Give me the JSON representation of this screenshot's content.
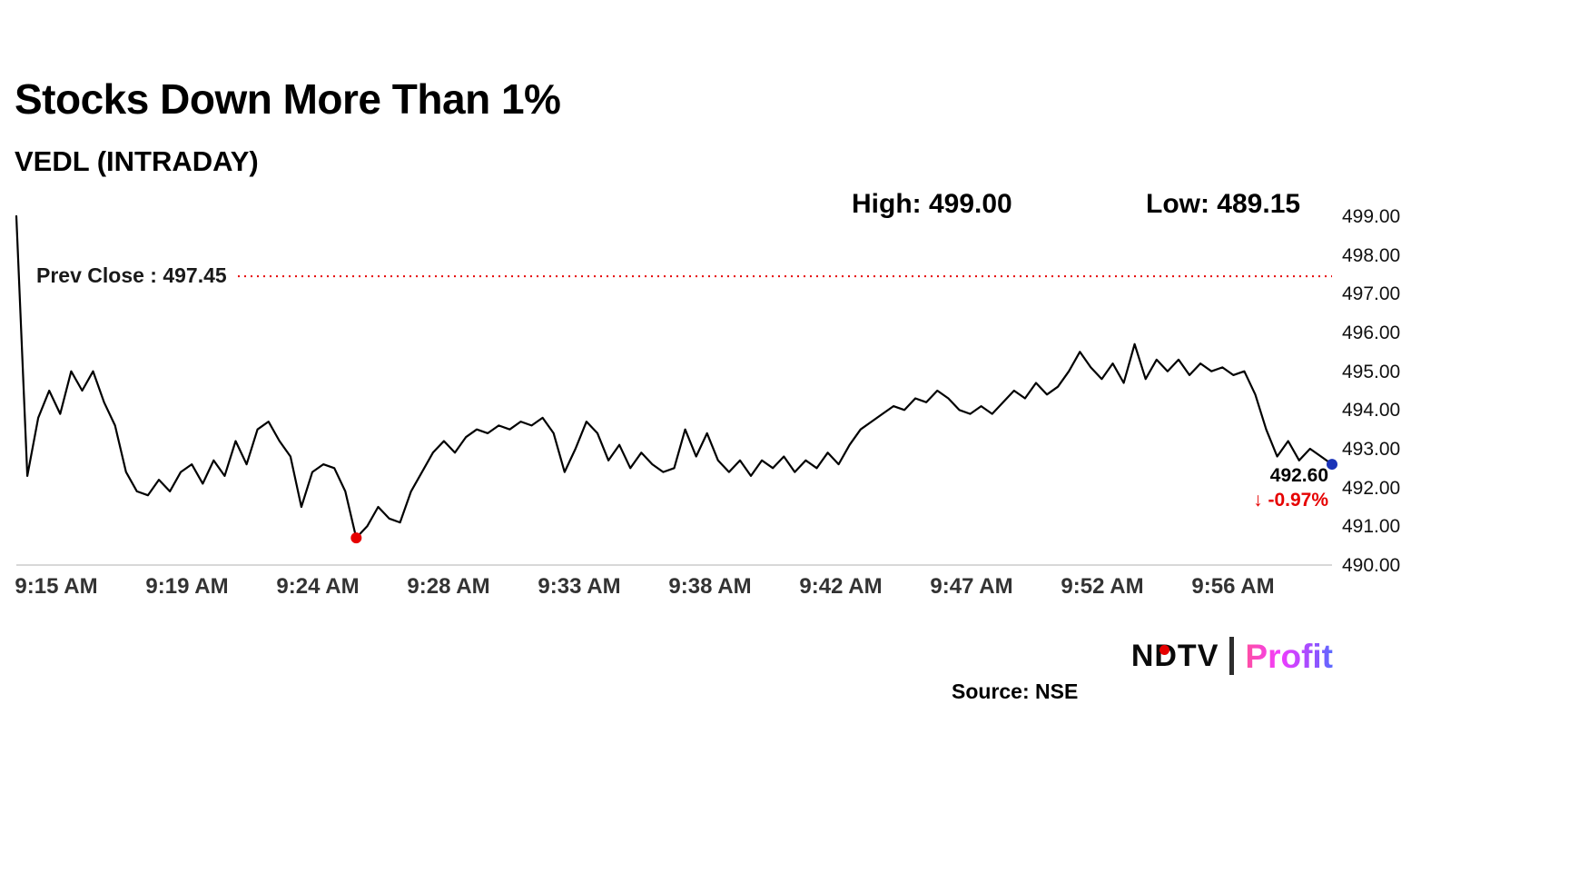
{
  "header": {
    "title": "Stocks Down More Than 1%",
    "subtitle": "VEDL (INTRADAY)"
  },
  "stats": {
    "high_label": "High: 499.00",
    "low_label": "Low: 489.15"
  },
  "prev_close": {
    "label": "Prev Close : 497.45",
    "value": 497.45
  },
  "annotation": {
    "last_price": "492.60",
    "change": "↓ -0.97%"
  },
  "footer": {
    "source": "Source: NSE",
    "logo_ndtv": "NDTV",
    "logo_profit": "Profit"
  },
  "colors": {
    "line": "#000000",
    "prev_close_line": "#e60000",
    "change_text": "#e60000",
    "min_dot": "#e60000",
    "last_dot": "#1a33b8",
    "axis": "#cccccc",
    "ndtv_dot": "#e60000"
  },
  "chart_data": {
    "type": "line",
    "title": "VEDL intraday price",
    "xlabel": "",
    "ylabel": "",
    "x_labels": [
      "9:15 AM",
      "9:19 AM",
      "9:24 AM",
      "9:28 AM",
      "9:33 AM",
      "9:38 AM",
      "9:42 AM",
      "9:47 AM",
      "9:52 AM",
      "9:56 AM"
    ],
    "y_tick_labels": [
      "499.00",
      "498.00",
      "497.00",
      "496.00",
      "495.00",
      "494.00",
      "493.00",
      "492.00",
      "491.00",
      "490.00"
    ],
    "ylim": [
      490,
      499
    ],
    "grid": false,
    "legend": "none",
    "high": 499.0,
    "low": 489.15,
    "prev_close": 497.45,
    "last": 492.6,
    "change_pct": -0.97,
    "values": [
      499.0,
      492.3,
      493.8,
      494.5,
      493.9,
      495.0,
      494.5,
      495.0,
      494.2,
      493.6,
      492.4,
      491.9,
      491.8,
      492.2,
      491.9,
      492.4,
      492.6,
      492.1,
      492.7,
      492.3,
      493.2,
      492.6,
      493.5,
      493.7,
      493.2,
      492.8,
      491.5,
      492.4,
      492.6,
      492.5,
      491.9,
      490.7,
      491.0,
      491.5,
      491.2,
      491.1,
      491.9,
      492.4,
      492.9,
      493.2,
      492.9,
      493.3,
      493.5,
      493.4,
      493.6,
      493.5,
      493.7,
      493.6,
      493.8,
      493.4,
      492.4,
      493.0,
      493.7,
      493.4,
      492.7,
      493.1,
      492.5,
      492.9,
      492.6,
      492.4,
      492.5,
      493.5,
      492.8,
      493.4,
      492.7,
      492.4,
      492.7,
      492.3,
      492.7,
      492.5,
      492.8,
      492.4,
      492.7,
      492.5,
      492.9,
      492.6,
      493.1,
      493.5,
      493.7,
      493.9,
      494.1,
      494.0,
      494.3,
      494.2,
      494.5,
      494.3,
      494.0,
      493.9,
      494.1,
      493.9,
      494.2,
      494.5,
      494.3,
      494.7,
      494.4,
      494.6,
      495.0,
      495.5,
      495.1,
      494.8,
      495.2,
      494.7,
      495.7,
      494.8,
      495.3,
      495.0,
      495.3,
      494.9,
      495.2,
      495.0,
      495.1,
      494.9,
      495.0,
      494.4,
      493.5,
      492.8,
      493.2,
      492.7,
      493.0,
      492.8,
      492.6
    ]
  }
}
